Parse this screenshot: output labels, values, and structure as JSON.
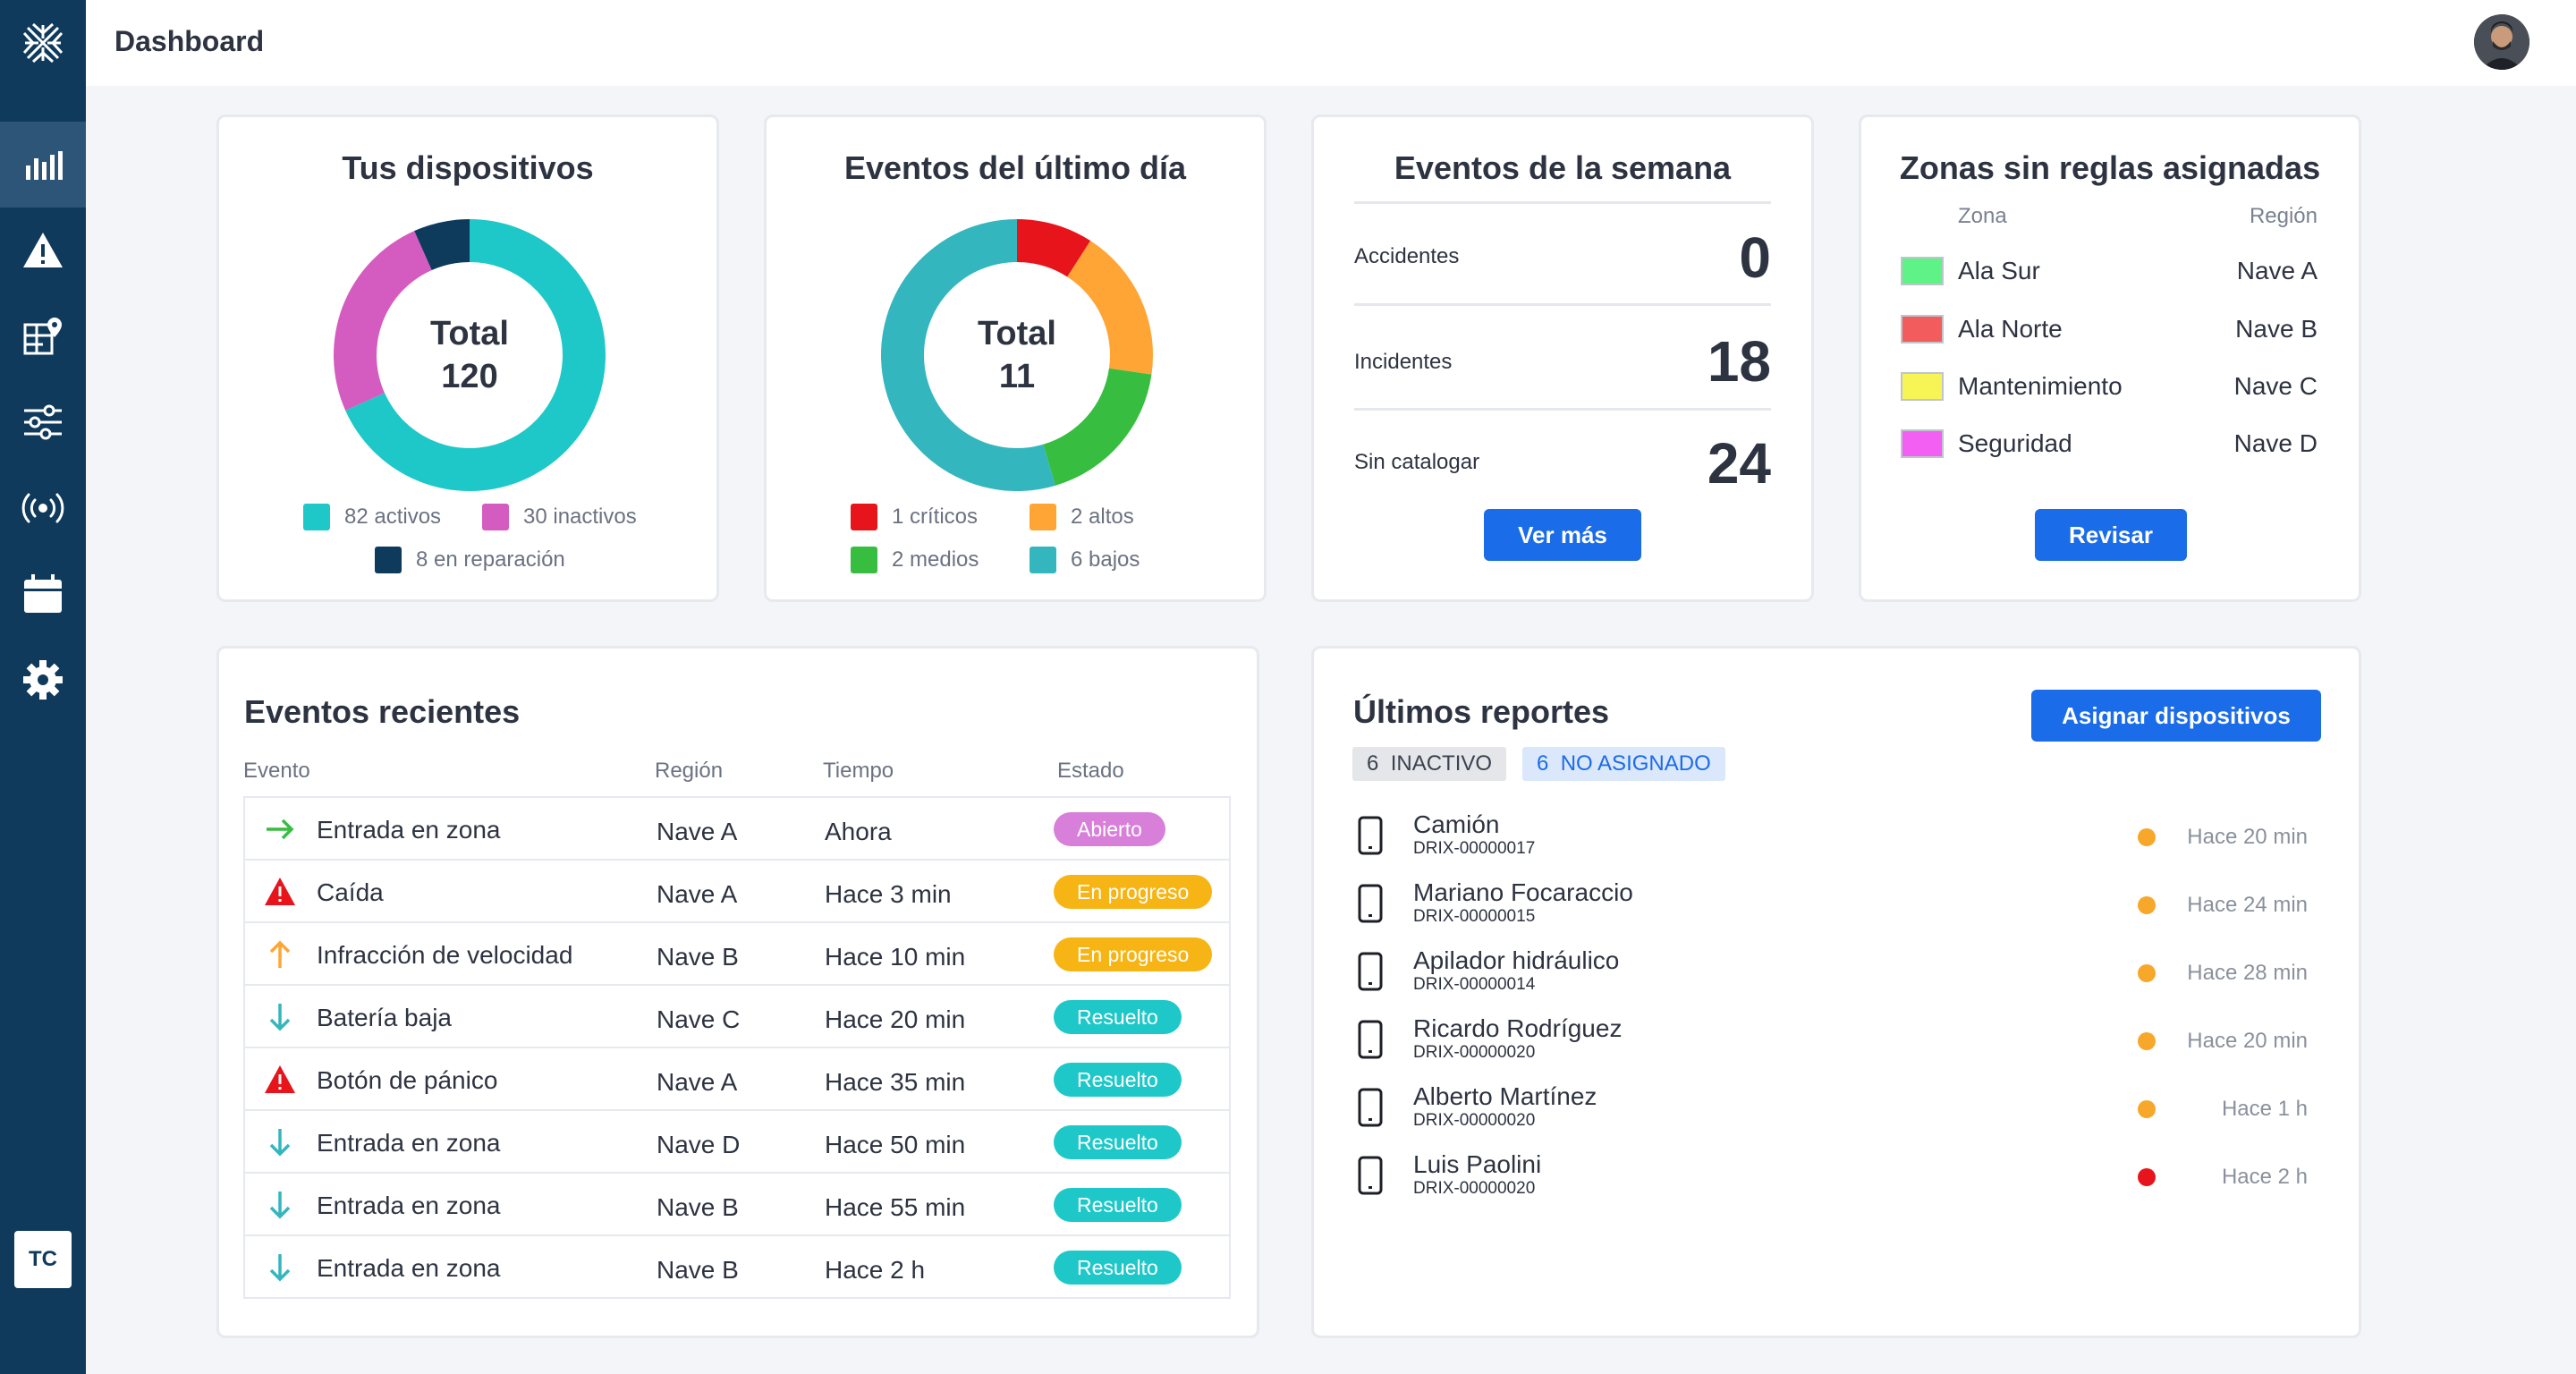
{
  "header": {
    "title": "Dashboard",
    "user_initials": "TC"
  },
  "sidebar": {
    "items": [
      {
        "name": "logo-icon"
      },
      {
        "name": "analytics-icon"
      },
      {
        "name": "alert-icon"
      },
      {
        "name": "map-icon"
      },
      {
        "name": "sliders-icon"
      },
      {
        "name": "broadcast-icon"
      },
      {
        "name": "calendar-icon"
      },
      {
        "name": "gear-icon"
      }
    ]
  },
  "devices": {
    "title": "Tus dispositivos",
    "total_label": "Total",
    "total_value": "120",
    "legend": [
      {
        "label": "82 activos",
        "value": 82,
        "color": "#1fc8c8"
      },
      {
        "label": "30 inactivos",
        "value": 30,
        "color": "#d45cc0"
      },
      {
        "label": "8 en reparación",
        "value": 8,
        "color": "#0e3a5c"
      }
    ]
  },
  "daily_events": {
    "title": "Eventos del último día",
    "total_label": "Total",
    "total_value": "11",
    "legend": [
      {
        "label": "1 críticos",
        "value": 1,
        "color": "#e8141b"
      },
      {
        "label": "2 altos",
        "value": 2,
        "color": "#ffa535"
      },
      {
        "label": "2 medios",
        "value": 2,
        "color": "#37bd3f"
      },
      {
        "label": "6 bajos",
        "value": 6,
        "color": "#34b6be"
      }
    ]
  },
  "week_events": {
    "title": "Eventos de la semana",
    "rows": [
      {
        "label": "Accidentes",
        "value": "0"
      },
      {
        "label": "Incidentes",
        "value": "18"
      },
      {
        "label": "Sin catalogar",
        "value": "24"
      }
    ],
    "button": "Ver más"
  },
  "zones": {
    "title": "Zonas sin reglas asignadas",
    "col_zone": "Zona",
    "col_region": "Región",
    "rows": [
      {
        "name": "Ala Sur",
        "region": "Nave A",
        "color": "#5ff287"
      },
      {
        "name": "Ala Norte",
        "region": "Nave B",
        "color": "#f25c5c"
      },
      {
        "name": "Mantenimiento",
        "region": "Nave C",
        "color": "#f7f555"
      },
      {
        "name": "Seguridad",
        "region": "Nave D",
        "color": "#f25ff2"
      }
    ],
    "button": "Revisar"
  },
  "recent_events": {
    "title": "Eventos recientes",
    "columns": [
      "Evento",
      "Región",
      "Tiempo",
      "Estado"
    ],
    "rows": [
      {
        "icon": "arrow-right-icon",
        "name": "Entrada en zona",
        "region": "Nave A",
        "time": "Ahora",
        "status": "Abierto",
        "status_color": "#d77fd9"
      },
      {
        "icon": "warning-icon",
        "name": "Caída",
        "region": "Nave A",
        "time": "Hace 3 min",
        "status": "En progreso",
        "status_color": "#f7b515"
      },
      {
        "icon": "arrow-up-icon",
        "name": "Infracción de velocidad",
        "region": "Nave B",
        "time": "Hace 10 min",
        "status": "En progreso",
        "status_color": "#f7b515"
      },
      {
        "icon": "arrow-down-icon",
        "name": "Batería baja",
        "region": "Nave C",
        "time": "Hace 20 min",
        "status": "Resuelto",
        "status_color": "#1fc8c8"
      },
      {
        "icon": "warning-icon",
        "name": "Botón de pánico",
        "region": "Nave A",
        "time": "Hace 35 min",
        "status": "Resuelto",
        "status_color": "#1fc8c8"
      },
      {
        "icon": "arrow-down-icon",
        "name": "Entrada en zona",
        "region": "Nave D",
        "time": "Hace 50 min",
        "status": "Resuelto",
        "status_color": "#1fc8c8"
      },
      {
        "icon": "arrow-down-icon",
        "name": "Entrada en zona",
        "region": "Nave B",
        "time": "Hace 55 min",
        "status": "Resuelto",
        "status_color": "#1fc8c8"
      },
      {
        "icon": "arrow-down-icon",
        "name": "Entrada en zona",
        "region": "Nave B",
        "time": "Hace 2 h",
        "status": "Resuelto",
        "status_color": "#1fc8c8"
      }
    ]
  },
  "reports": {
    "title": "Últimos reportes",
    "button": "Asignar dispositivos",
    "chips": [
      {
        "count": "6",
        "label": "INACTIVO"
      },
      {
        "count": "6",
        "label": "NO ASIGNADO"
      }
    ],
    "rows": [
      {
        "name": "Camión",
        "id": "DRIX-00000017",
        "time": "Hace 20 min",
        "dot": "#f7a82a"
      },
      {
        "name": "Mariano Focaraccio",
        "id": "DRIX-00000015",
        "time": "Hace 24 min",
        "dot": "#f7a82a"
      },
      {
        "name": "Apilador hidráulico",
        "id": "DRIX-00000014",
        "time": "Hace 28 min",
        "dot": "#f7a82a"
      },
      {
        "name": "Ricardo Rodríguez",
        "id": "DRIX-00000020",
        "time": "Hace 20 min",
        "dot": "#f7a82a"
      },
      {
        "name": "Alberto Martínez",
        "id": "DRIX-00000020",
        "time": "Hace 1 h",
        "dot": "#f7a82a"
      },
      {
        "name": "Luis Paolini",
        "id": "DRIX-00000020",
        "time": "Hace 2 h",
        "dot": "#e8141b"
      }
    ]
  }
}
